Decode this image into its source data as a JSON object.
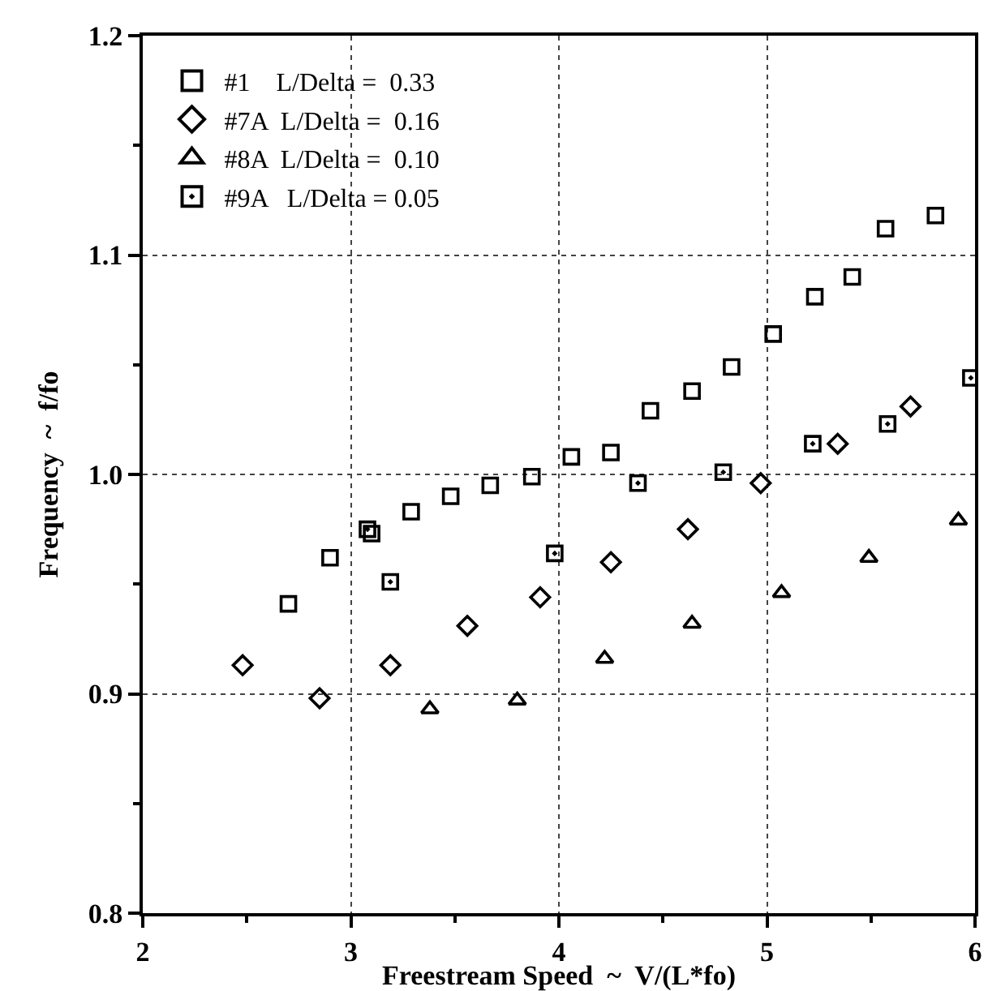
{
  "chart_data": {
    "type": "scatter",
    "xlabel": "Freestream Speed  ~  V/(L*fo)",
    "ylabel": "Frequency  ~  f/fo",
    "xlim": [
      2,
      6
    ],
    "xticks": [
      2,
      3,
      4,
      5,
      6
    ],
    "ylim": [
      0.8,
      1.2
    ],
    "yticks": [
      {
        "value": 0.8,
        "label": "0.8"
      },
      {
        "value": 0.9,
        "label": "0.9"
      },
      {
        "value": 1.0,
        "label": "1.0"
      },
      {
        "value": 1.1,
        "label": "1.1"
      },
      {
        "value": 1.2,
        "label": "1.2"
      }
    ],
    "grid": true,
    "legend": "top left",
    "series": [
      {
        "name": "#1    L/Delta =  0.33",
        "color": "#000000",
        "marker": "square",
        "x": [
          2.7,
          2.9,
          3.1,
          3.29,
          3.48,
          3.67,
          3.87,
          4.06,
          4.25,
          4.44,
          4.64,
          4.83,
          5.03,
          5.23,
          5.41,
          5.57,
          5.81
        ],
        "values": [
          0.941,
          0.962,
          0.973,
          0.983,
          0.99,
          0.995,
          0.999,
          1.008,
          1.01,
          1.029,
          1.038,
          1.049,
          1.064,
          1.081,
          1.09,
          1.112,
          1.118
        ]
      },
      {
        "name": "#7A  L/Delta =  0.16",
        "color": "#000000",
        "marker": "diamond",
        "x": [
          2.48,
          2.85,
          3.19,
          3.56,
          3.91,
          4.25,
          4.62,
          4.97,
          5.34,
          5.69
        ],
        "values": [
          0.913,
          0.898,
          0.913,
          0.931,
          0.944,
          0.96,
          0.975,
          0.996,
          1.014,
          1.031
        ]
      },
      {
        "name": "#8A  L/Delta =  0.10",
        "color": "#000000",
        "marker": "triangle",
        "x": [
          3.38,
          3.8,
          4.22,
          4.64,
          5.07,
          5.49,
          5.92
        ],
        "values": [
          0.893,
          0.897,
          0.916,
          0.932,
          0.946,
          0.962,
          0.979
        ]
      },
      {
        "name": "#9A   L/Delta = 0.05",
        "color": "#000000",
        "marker": "square-dot",
        "x": [
          3.08,
          3.19,
          3.98,
          4.38,
          4.79,
          5.22,
          5.58,
          5.98
        ],
        "values": [
          0.975,
          0.951,
          0.964,
          0.996,
          1.001,
          1.014,
          1.023,
          1.044
        ]
      }
    ]
  }
}
